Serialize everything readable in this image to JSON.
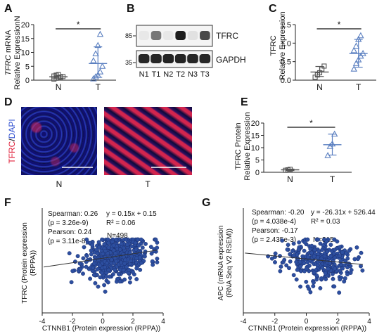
{
  "panel_labels": {
    "A": "A",
    "B": "B",
    "C": "C",
    "D": "D",
    "E": "E",
    "F": "F",
    "G": "G"
  },
  "colors": {
    "normal": "#555555",
    "tumor": "#5a7fc0",
    "scatter": "#2d4fa0",
    "tfrc_red": "#e0203a",
    "dapi_blue": "#3050d0"
  },
  "chart_data": [
    {
      "id": "A",
      "type": "scatter",
      "ylabel_italic": "TFRC",
      "ylabel_rest": " mRNA",
      "ylabel2": "Relative ExpressionN",
      "ylim": [
        0,
        20
      ],
      "yticks": [
        "0",
        "5",
        "10",
        "15",
        "20"
      ],
      "categories": [
        "N",
        "T"
      ],
      "N": [
        0.4,
        0.7,
        0.9,
        1.1,
        1.3,
        1.5,
        1.8,
        2.0
      ],
      "T": [
        0.5,
        1.2,
        1.8,
        3.0,
        5.0,
        7.0,
        9.5,
        12.5,
        16.5
      ],
      "N_mean": 1.2,
      "N_sd": [
        0.7,
        1.8
      ],
      "T_mean": 6.0,
      "T_sd": [
        1.0,
        12.0
      ],
      "sig": "*"
    },
    {
      "id": "B",
      "type": "blot",
      "markers": [
        "85",
        "35"
      ],
      "bands": [
        "TFRC",
        "GAPDH"
      ],
      "lanes": [
        "N1",
        "T1",
        "N2",
        "T2",
        "N3",
        "T3"
      ],
      "TFRC_intensity": [
        0.05,
        0.55,
        0.05,
        0.95,
        0.08,
        0.75
      ],
      "GAPDH_intensity": [
        0.9,
        0.9,
        0.92,
        0.92,
        0.9,
        0.9
      ]
    },
    {
      "id": "C",
      "type": "scatter",
      "ylabel": "TFRC",
      "ylabel2": "Relative Expression",
      "ylim": [
        0,
        1.5
      ],
      "yticks": [
        "0.0",
        "0.5",
        "1.0",
        "1.5"
      ],
      "categories": [
        "N",
        "T"
      ],
      "N": [
        0.08,
        0.14,
        0.2,
        0.3,
        0.38
      ],
      "T": [
        0.3,
        0.45,
        0.55,
        0.65,
        0.72,
        0.8,
        0.92,
        1.1,
        1.2
      ],
      "N_mean": 0.22,
      "N_sd": [
        0.1,
        0.37
      ],
      "T_mean": 0.72,
      "T_sd": [
        0.35,
        1.1
      ],
      "sig": "*"
    },
    {
      "id": "E",
      "type": "scatter",
      "ylabel": "TFRC Protein",
      "ylabel2": "Relative Expression",
      "ylim": [
        0,
        20
      ],
      "yticks": [
        "0",
        "5",
        "10",
        "15",
        "20"
      ],
      "categories": [
        "N",
        "T"
      ],
      "N": [
        0.8,
        1.0,
        1.2
      ],
      "T": [
        6.8,
        10.5,
        11.5,
        15.5
      ],
      "N_mean": 1.0,
      "N_sd": [
        0.7,
        1.3
      ],
      "T_mean": 11.2,
      "T_sd": [
        7.0,
        15.5
      ],
      "sig": "*"
    },
    {
      "id": "F",
      "type": "scatter",
      "xlabel": "CTNNB1 (Protein expression (RPPA))",
      "ylabel": "TFRC (Protein expression",
      "ylabel2": "(RPPA))",
      "xlim": [
        -4,
        4
      ],
      "xticks": [
        "-4",
        "-2",
        "0",
        "2",
        "4"
      ],
      "ylim": [
        -3.5,
        3.5
      ],
      "stats": [
        "Spearman: 0.26",
        "(p = 3.26e-9)",
        "Pearson: 0.24",
        "(p = 3.11e-8)"
      ],
      "equation": "y = 0.15x + 0.15",
      "r2": "R² = 0.06",
      "n": "N=498",
      "fit": {
        "slope": 0.15,
        "intercept": 0.15
      },
      "seed": 11,
      "npoints": 498,
      "xmean": 0.9,
      "xsd": 1.1,
      "ysd": 0.75
    },
    {
      "id": "G",
      "type": "scatter",
      "xlabel": "CTNNB1 (Protein expression (RPPA))",
      "ylabel": "APC (mRNA expression",
      "ylabel2": "(RNA Seq V2 RSEM))",
      "xlim": [
        -4,
        4
      ],
      "xticks": [
        "-4",
        "-2",
        "0",
        "2",
        "4"
      ],
      "ylim": [
        -400,
        1400
      ],
      "stats": [
        "Spearman: -0.20",
        "(p = 4.038e-4)",
        "Pearson: -0.17",
        "(p = 2.435e-3)"
      ],
      "equation": "y = -26.31x + 526.44",
      "r2": "R² = 0.03",
      "n": "N=315",
      "fit": {
        "slope": -26.31,
        "intercept": 526.44
      },
      "seed": 23,
      "npoints": 315,
      "xmean": 0.8,
      "xsd": 1.1,
      "ysd": 190
    }
  ],
  "panel_D": {
    "ylabel_tfrc": "TFRC",
    "ylabel_sep": "/",
    "ylabel_dapi": "DAPI",
    "labels": [
      "N",
      "T"
    ]
  }
}
